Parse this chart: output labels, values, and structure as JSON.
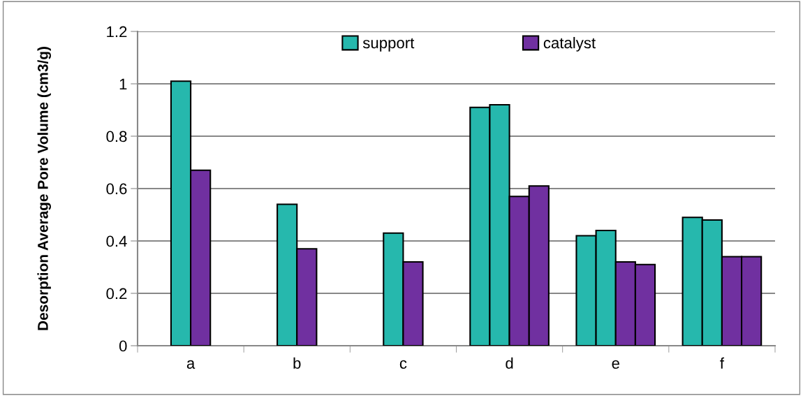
{
  "chart_data": {
    "type": "bar",
    "ylabel": "Desorption Average Pore Volume (cm3/g)",
    "categories": [
      "a",
      "b",
      "c",
      "d",
      "e",
      "f"
    ],
    "series": [
      {
        "name": "support",
        "color": "#26b8ad",
        "values": [
          1.01,
          0.54,
          0.43,
          0.91,
          0.42,
          0.49
        ]
      },
      {
        "color": "#26b8ad",
        "values": [
          null,
          null,
          null,
          0.92,
          0.44,
          0.48
        ]
      },
      {
        "name": "catalyst",
        "color": "#7030a0",
        "values": [
          0.67,
          0.37,
          0.32,
          0.57,
          0.32,
          0.34
        ]
      },
      {
        "color": "#7030a0",
        "values": [
          null,
          null,
          null,
          0.61,
          0.31,
          0.34
        ]
      }
    ],
    "ylim": [
      0,
      1.2
    ],
    "yticks": [
      0,
      0.2,
      0.4,
      0.6,
      0.8,
      1,
      1.2
    ],
    "grid": "y",
    "legend": "top"
  }
}
